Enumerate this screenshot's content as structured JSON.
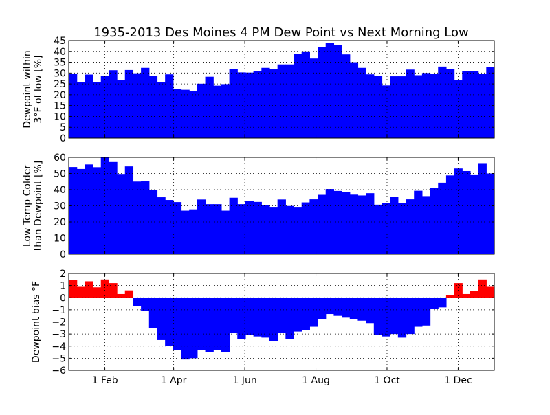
{
  "title": "1935-2013 Des Moines 4 PM Dew Point vs Next Morning Low",
  "colors": {
    "bar": "#0000ff",
    "positive_bar": "#ff0000",
    "axis": "#000000",
    "grid": "#000000",
    "background": "#ffffff"
  },
  "x_ticks": [
    {
      "label": "1 Feb",
      "day": 32
    },
    {
      "label": "1 Apr",
      "day": 91
    },
    {
      "label": "1 Jun",
      "day": 152
    },
    {
      "label": "1 Aug",
      "day": 213
    },
    {
      "label": "1 Oct",
      "day": 274
    },
    {
      "label": "1 Dec",
      "day": 335
    }
  ],
  "chart_data": [
    {
      "type": "bar",
      "title": "1935-2013 Des Moines 4 PM Dew Point vs Next Morning Low",
      "ylabel": [
        "Dewpoint within",
        "3°F of low [%]"
      ],
      "xlabel": "",
      "x_unit": "day of year, weekly bins",
      "xlim": [
        1,
        366
      ],
      "ylim": [
        0,
        45
      ],
      "yticks": [
        "0",
        "5",
        "10",
        "15",
        "20",
        "25",
        "30",
        "35",
        "40",
        "45"
      ],
      "ytick_values": [
        0,
        5,
        10,
        15,
        20,
        25,
        30,
        35,
        40,
        45
      ],
      "grid": true,
      "values": [
        29.8,
        25.7,
        29.3,
        25.7,
        28.6,
        31.3,
        26.9,
        31.4,
        29.9,
        32.4,
        28.7,
        25.8,
        29.4,
        22.6,
        22.3,
        21.6,
        25.1,
        28.3,
        24.2,
        24.9,
        31.8,
        30.3,
        30.2,
        30.9,
        32.4,
        32.0,
        34.0,
        34.0,
        38.9,
        40.0,
        36.7,
        42.0,
        44.0,
        43.0,
        38.6,
        35.0,
        32.4,
        29.4,
        28.6,
        24.3,
        28.5,
        28.5,
        31.6,
        29.0,
        30.0,
        29.5,
        33.0,
        32.0,
        26.9,
        31.0,
        31.0,
        29.7,
        32.8
      ]
    },
    {
      "type": "bar",
      "ylabel": [
        "Low Temp Colder",
        "than Dewpoint [%]"
      ],
      "xlabel": "",
      "x_unit": "day of year, weekly bins",
      "xlim": [
        1,
        366
      ],
      "ylim": [
        0,
        60
      ],
      "yticks": [
        "0",
        "10",
        "20",
        "30",
        "40",
        "50",
        "60"
      ],
      "ytick_values": [
        0,
        10,
        20,
        30,
        40,
        50,
        60
      ],
      "grid": true,
      "values": [
        54.0,
        52.8,
        55.6,
        53.9,
        60.0,
        57.1,
        49.7,
        54.4,
        45.0,
        45.1,
        39.6,
        35.3,
        33.6,
        32.3,
        27.0,
        27.8,
        33.9,
        31.0,
        31.0,
        27.0,
        35.0,
        31.0,
        33.1,
        32.4,
        30.5,
        28.9,
        33.9,
        29.9,
        28.9,
        32.1,
        34.0,
        36.8,
        40.4,
        39.2,
        38.6,
        36.9,
        36.4,
        37.8,
        30.7,
        31.6,
        35.5,
        31.5,
        34.0,
        39.3,
        36.0,
        41.2,
        44.3,
        48.8,
        53.1,
        51.5,
        49.4,
        56.4,
        50.0
      ]
    },
    {
      "type": "bar",
      "ylabel": [
        "Dewpoint bias °F"
      ],
      "xlabel": "",
      "x_unit": "day of year, weekly bins",
      "xlim": [
        1,
        366
      ],
      "ylim": [
        -6,
        2
      ],
      "yticks": [
        "−6",
        "−5",
        "−4",
        "−3",
        "−2",
        "−1",
        "0",
        "1",
        "2"
      ],
      "ytick_values": [
        -6,
        -5,
        -4,
        -3,
        -2,
        -1,
        0,
        1,
        2
      ],
      "grid": true,
      "values": [
        1.45,
        0.95,
        1.35,
        0.85,
        1.5,
        1.2,
        0.3,
        0.6,
        -0.7,
        -1.1,
        -2.5,
        -3.5,
        -4.0,
        -4.3,
        -5.1,
        -5.0,
        -4.3,
        -4.5,
        -4.3,
        -4.5,
        -2.9,
        -3.4,
        -3.1,
        -3.2,
        -3.3,
        -3.6,
        -2.9,
        -3.4,
        -2.8,
        -2.7,
        -2.4,
        -1.8,
        -1.35,
        -1.5,
        -1.65,
        -1.75,
        -1.9,
        -2.1,
        -3.1,
        -3.2,
        -3.0,
        -3.3,
        -3.0,
        -2.4,
        -2.3,
        -0.9,
        -0.8,
        0.2,
        1.2,
        0.3,
        0.55,
        1.5,
        0.95
      ]
    }
  ]
}
